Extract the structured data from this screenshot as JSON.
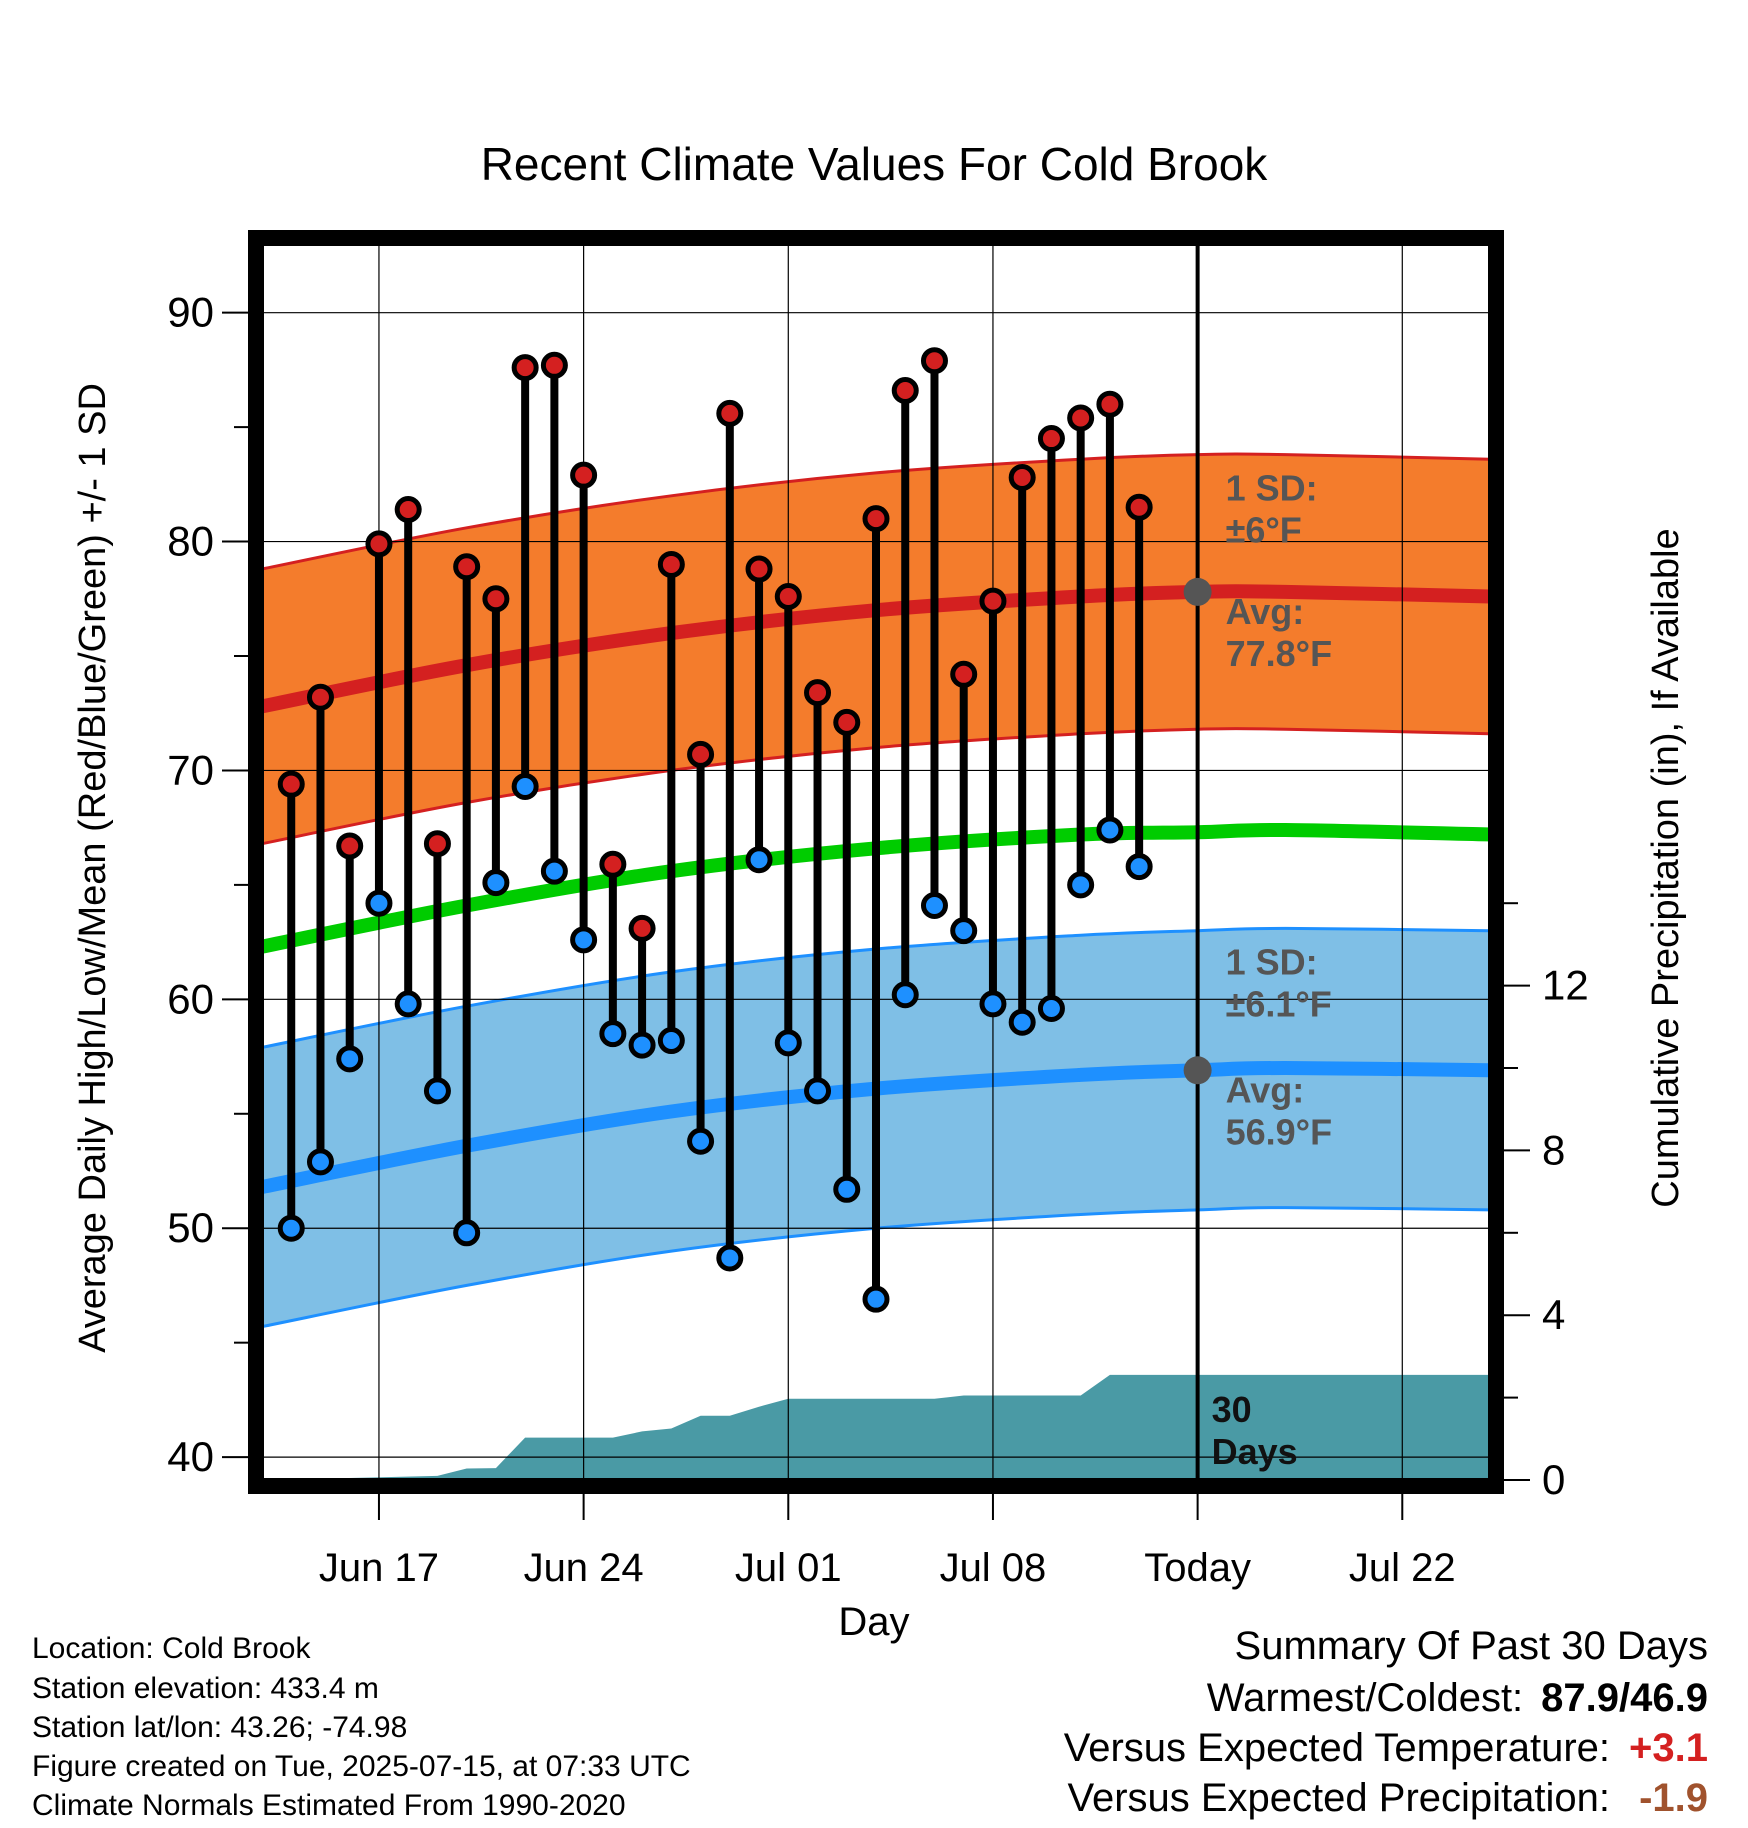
{
  "chart_data": {
    "type": "line",
    "title": "Recent Climate Values For Cold Brook",
    "xlabel": "Day",
    "ylabel": "Average Daily High/Low/Mean (Red/Blue/Green) +/- 1 SD",
    "y2label": "Cumulative Precipitation (in), If Available",
    "ylim": [
      39,
      93
    ],
    "y2lim": [
      0,
      30
    ],
    "xlim": [
      "2025-06-13",
      "2025-07-25"
    ],
    "yticks": [
      "40",
      "50",
      "60",
      "70",
      "80",
      "90"
    ],
    "y2ticks": [
      "0",
      "4",
      "8",
      "12"
    ],
    "xticks": [
      {
        "date": "2025-06-17",
        "label": "Jun 17"
      },
      {
        "date": "2025-06-24",
        "label": "Jun 24"
      },
      {
        "date": "2025-07-01",
        "label": "Jul 01"
      },
      {
        "date": "2025-07-08",
        "label": "Jul 08"
      },
      {
        "date": "2025-07-15",
        "label": "Today"
      },
      {
        "date": "2025-07-22",
        "label": "Jul 22"
      }
    ],
    "grid": true,
    "today": "2025-07-15",
    "daily": {
      "dates": [
        "2025-06-14",
        "2025-06-15",
        "2025-06-16",
        "2025-06-17",
        "2025-06-18",
        "2025-06-19",
        "2025-06-20",
        "2025-06-21",
        "2025-06-22",
        "2025-06-23",
        "2025-06-24",
        "2025-06-25",
        "2025-06-26",
        "2025-06-27",
        "2025-06-28",
        "2025-06-29",
        "2025-06-30",
        "2025-07-01",
        "2025-07-02",
        "2025-07-03",
        "2025-07-04",
        "2025-07-05",
        "2025-07-06",
        "2025-07-07",
        "2025-07-08",
        "2025-07-09",
        "2025-07-10",
        "2025-07-11",
        "2025-07-12",
        "2025-07-13",
        "2025-07-14"
      ],
      "high": [
        69.4,
        73.2,
        66.7,
        79.9,
        81.4,
        66.8,
        78.9,
        77.5,
        87.6,
        87.7,
        82.9,
        65.9,
        63.1,
        79.0,
        70.7,
        85.6,
        78.8,
        77.6,
        73.4,
        72.1,
        81.0,
        86.6,
        87.9,
        74.2,
        77.4,
        82.8,
        84.5,
        85.4,
        86.0,
        81.5,
        null
      ],
      "low": [
        50.0,
        52.9,
        57.4,
        64.2,
        59.8,
        56.0,
        49.8,
        65.1,
        69.3,
        65.6,
        62.6,
        58.5,
        58.0,
        58.2,
        53.8,
        48.7,
        66.1,
        58.1,
        56.0,
        51.7,
        46.9,
        60.2,
        64.1,
        63.0,
        59.8,
        59.0,
        59.6,
        65.0,
        67.4,
        65.8,
        null
      ]
    },
    "normals": {
      "dates": [
        "2025-06-13",
        "2025-06-20",
        "2025-06-27",
        "2025-07-04",
        "2025-07-11",
        "2025-07-15",
        "2025-07-18",
        "2025-07-25"
      ],
      "high_avg": [
        72.8,
        74.6,
        76.0,
        77.0,
        77.6,
        77.8,
        77.8,
        77.6
      ],
      "low_avg": [
        51.8,
        53.6,
        55.1,
        56.1,
        56.7,
        56.9,
        57.0,
        56.9
      ],
      "mean_avg": [
        62.3,
        64.1,
        65.6,
        66.6,
        67.2,
        67.3,
        67.4,
        67.2
      ],
      "high_sd": 6,
      "low_sd": 6.1
    },
    "precip": {
      "dates": [
        "2025-06-13",
        "2025-06-19",
        "2025-06-20",
        "2025-06-21",
        "2025-06-22",
        "2025-06-25",
        "2025-06-26",
        "2025-06-27",
        "2025-06-28",
        "2025-06-29",
        "2025-06-30",
        "2025-07-01",
        "2025-07-06",
        "2025-07-07",
        "2025-07-11",
        "2025-07-12",
        "2025-07-25"
      ],
      "cumulative": [
        0,
        0.1,
        0.28,
        0.29,
        1.03,
        1.03,
        1.18,
        1.25,
        1.56,
        1.56,
        1.78,
        1.97,
        1.97,
        2.05,
        2.05,
        2.55,
        2.55
      ]
    },
    "annotations": {
      "high_sd_label": "1 SD:",
      "high_sd_value": "±6°F",
      "high_avg_label": "Avg:",
      "high_avg_value": "77.8°F",
      "low_sd_label": "1 SD:",
      "low_sd_value": "±6.1°F",
      "low_avg_label": "Avg:",
      "low_avg_value": "56.9°F",
      "days_line1": "30",
      "days_line2": "Days"
    },
    "colors": {
      "high_band": "#f47c2c",
      "high_line": "#d42020",
      "low_band": "#7fbfe6",
      "low_line": "#1e90ff",
      "mean_line": "#00cc00",
      "precip": "#4a9aa5",
      "high_point": "#d42020",
      "low_point": "#1e90ff",
      "annotation": "#555555"
    }
  },
  "info": {
    "location": "Location: Cold Brook",
    "elevation": "Station elevation: 433.4 m",
    "latlon": "Station lat/lon: 43.26; -74.98",
    "created": "Figure created on Tue, 2025-07-15, at 07:33 UTC",
    "normals": "Climate Normals Estimated From 1990-2020"
  },
  "summary": {
    "title": "Summary Of Past 30 Days",
    "warm_cold_label": "Warmest/Coldest:",
    "warm_cold_value": "87.9/46.9",
    "temp_label": "Versus Expected Temperature:",
    "temp_value": "+3.1",
    "temp_color": "#d42020",
    "precip_label": "Versus Expected Precipitation:",
    "precip_value": "-1.9",
    "precip_color": "#a0522d"
  }
}
